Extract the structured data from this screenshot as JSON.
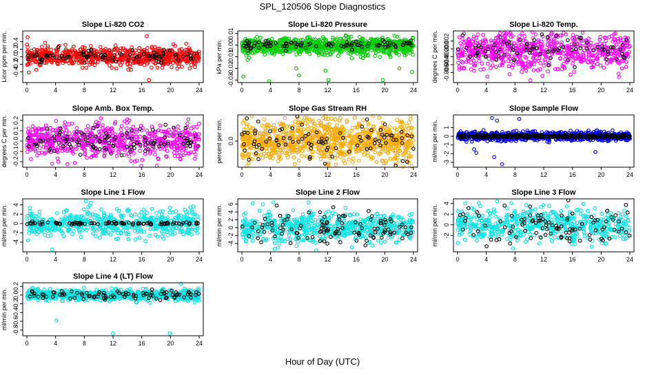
{
  "figure": {
    "title": "SPL_120506  Slope Diagnostics",
    "xlabel": "Hour of Day (UTC)"
  },
  "chart_data": [
    {
      "type": "scatter",
      "title": "Slope Li-820 CO2",
      "ylabel": "Licor ppm per min.",
      "xlim": [
        0,
        24
      ],
      "ylim": [
        -0.65,
        0.65
      ],
      "xticks": [
        0,
        4,
        8,
        12,
        16,
        20,
        24
      ],
      "yticks": [
        -0.4,
        -0.2,
        0.0,
        0.2,
        0.4
      ],
      "ytick_labels": [
        "-0.4",
        "-0.2",
        "0.0",
        "0.2",
        "0.4"
      ],
      "series": [
        {
          "name": "all",
          "color": "#ff0000",
          "n": 700,
          "spread": 0.12,
          "center": 0.0,
          "outliers": [
            [
              0.1,
              0.52
            ],
            [
              1.3,
              -0.35
            ],
            [
              17.0,
              -0.62
            ],
            [
              16.7,
              0.55
            ]
          ]
        },
        {
          "name": "highlight",
          "color": "#000000",
          "n": 90,
          "spread": 0.08,
          "center": 0.0,
          "outliers": []
        }
      ]
    },
    {
      "type": "scatter",
      "title": "Slope Li-820 Pressure",
      "ylabel": "kPa per min.",
      "xlim": [
        0,
        24
      ],
      "ylim": [
        -0.031,
        0.011
      ],
      "xticks": [
        0,
        4,
        8,
        12,
        16,
        20,
        24
      ],
      "yticks": [
        -0.03,
        -0.02,
        -0.01,
        0.0,
        0.01
      ],
      "ytick_labels": [
        "-0.03",
        "-0.02",
        "-0.01",
        "0.00",
        "0.01"
      ],
      "series": [
        {
          "name": "all",
          "color": "#00cc00",
          "n": 900,
          "spread": 0.0035,
          "center": -0.001,
          "outliers": [
            [
              0.2,
              -0.027
            ],
            [
              3.8,
              -0.031
            ],
            [
              7.6,
              -0.02
            ],
            [
              8.0,
              -0.026
            ],
            [
              11.7,
              -0.022
            ],
            [
              12.1,
              -0.03
            ],
            [
              22.0,
              -0.02
            ],
            [
              23.8,
              -0.023
            ],
            [
              19.7,
              -0.03
            ]
          ]
        },
        {
          "name": "highlight",
          "color": "#000000",
          "n": 90,
          "spread": 0.002,
          "center": 0.0,
          "outliers": []
        }
      ]
    },
    {
      "type": "scatter",
      "title": "Slope Li-820 Temp.",
      "ylabel": "degrees C per min.",
      "xlim": [
        0,
        24
      ],
      "ylim": [
        -0.0082,
        0.0042
      ],
      "xticks": [
        0,
        4,
        8,
        12,
        16,
        20,
        24
      ],
      "yticks": [
        -0.006,
        -0.004,
        -0.002,
        0.0,
        0.002
      ],
      "ytick_labels": [
        "-0.006",
        "-0.004",
        "-0.002",
        "0.000",
        "0.002"
      ],
      "series": [
        {
          "name": "all",
          "color": "#ff00ff",
          "n": 700,
          "spread": 0.0025,
          "center": -0.0005,
          "outliers": [
            [
              6.5,
              0.004
            ],
            [
              9.5,
              -0.0085
            ],
            [
              12.8,
              0.0033
            ]
          ]
        },
        {
          "name": "highlight",
          "color": "#000000",
          "n": 80,
          "spread": 0.002,
          "center": 0.0,
          "outliers": []
        }
      ]
    },
    {
      "type": "scatter",
      "title": "Slope Amb. Box Temp.",
      "ylabel": "degrees C per min.",
      "xlim": [
        0,
        24
      ],
      "ylim": [
        -0.24,
        0.24
      ],
      "xticks": [
        0,
        4,
        8,
        12,
        16,
        20,
        24
      ],
      "yticks": [
        -0.2,
        -0.1,
        0.0,
        0.1,
        0.2
      ],
      "ytick_labels": [
        "-0.2",
        "-0.1",
        "0.0",
        "0.1",
        "0.2"
      ],
      "series": [
        {
          "name": "all",
          "color": "#ff00ff",
          "n": 650,
          "spread": 0.08,
          "center": 0.0,
          "outliers": [
            [
              10.3,
              0.22
            ],
            [
              3.5,
              -0.22
            ],
            [
              18.1,
              -0.24
            ]
          ]
        },
        {
          "name": "highlight",
          "color": "#000000",
          "n": 110,
          "spread": 0.07,
          "center": 0.0,
          "outliers": []
        }
      ]
    },
    {
      "type": "scatter",
      "title": "Slope Gas Stream RH",
      "ylabel": "percent per min.",
      "xlim": [
        0,
        24
      ],
      "ylim": [
        -0.09,
        0.09
      ],
      "xticks": [
        0,
        4,
        8,
        12,
        16,
        20,
        24
      ],
      "yticks": [
        0.0
      ],
      "ytick_labels": [
        "0.0"
      ],
      "series": [
        {
          "name": "all",
          "color": "#ffaa00",
          "n": 950,
          "spread": 0.04,
          "center": 0.0,
          "outliers": [
            [
              11.9,
              -0.085
            ],
            [
              15.8,
              0.085
            ],
            [
              19.2,
              0.085
            ]
          ]
        },
        {
          "name": "highlight",
          "color": "#000000",
          "n": 90,
          "spread": 0.035,
          "center": 0.0,
          "outliers": []
        }
      ]
    },
    {
      "type": "scatter",
      "title": "Slope Sample Flow",
      "ylabel": "ml/min per min.",
      "xlim": [
        0,
        24
      ],
      "ylim": [
        -3.4,
        2.3
      ],
      "xticks": [
        0,
        4,
        8,
        12,
        16,
        20,
        24
      ],
      "yticks": [
        -3,
        -2,
        -1,
        0,
        1
      ],
      "ytick_labels": [
        "-3",
        "-2",
        "-1",
        "0",
        "1"
      ],
      "series": [
        {
          "name": "all",
          "color": "#0000dd",
          "n": 800,
          "spread": 0.25,
          "center": 0.0,
          "outliers": [
            [
              4.8,
              2.1
            ],
            [
              5.5,
              1.8
            ],
            [
              2.3,
              -1.5
            ],
            [
              2.6,
              -1.9
            ],
            [
              5.1,
              -2.4
            ],
            [
              6.2,
              -3.2
            ],
            [
              8.6,
              2.0
            ],
            [
              19.2,
              -1.8
            ]
          ]
        },
        {
          "name": "highlight",
          "color": "#000000",
          "n": 300,
          "spread": 0.07,
          "center": 0.0,
          "outliers": []
        }
      ]
    },
    {
      "type": "scatter",
      "title": "Slope Line 1 Flow",
      "ylabel": "ml/min per min.",
      "xlim": [
        0,
        24
      ],
      "ylim": [
        -5.8,
        5.0
      ],
      "xticks": [
        0,
        4,
        8,
        12,
        16,
        20,
        24
      ],
      "yticks": [
        -4,
        -2,
        0,
        2,
        4
      ],
      "ytick_labels": [
        "-4",
        "-2",
        "0",
        "2",
        "4"
      ],
      "series": [
        {
          "name": "all",
          "color": "#00e5e5",
          "n": 550,
          "spread": 1.4,
          "center": 0.0,
          "outliers": [
            [
              3.5,
              -5.6
            ],
            [
              8.2,
              4.8
            ],
            [
              8.9,
              4.4
            ]
          ]
        },
        {
          "name": "highlight",
          "color": "#000000",
          "n": 90,
          "spread": 0.15,
          "center": 0.0,
          "outliers": []
        }
      ]
    },
    {
      "type": "scatter",
      "title": "Slope Line 2 Flow",
      "ylabel": "ml/min per min.",
      "xlim": [
        0,
        24
      ],
      "ylim": [
        -5.8,
        7.0
      ],
      "xticks": [
        0,
        4,
        8,
        12,
        16,
        20,
        24
      ],
      "yticks": [
        -4,
        -2,
        0,
        2,
        4,
        6
      ],
      "ytick_labels": [
        "-4",
        "-2",
        "0",
        "2",
        "4",
        "6"
      ],
      "series": [
        {
          "name": "all",
          "color": "#00e5e5",
          "n": 600,
          "spread": 1.8,
          "center": 0.0,
          "outliers": [
            [
              1.5,
              6.2
            ],
            [
              9.3,
              6.4
            ],
            [
              4.6,
              -5.4
            ],
            [
              10.4,
              -5.8
            ]
          ]
        },
        {
          "name": "highlight",
          "color": "#000000",
          "n": 110,
          "spread": 2.2,
          "center": 0.0,
          "outliers": []
        }
      ]
    },
    {
      "type": "scatter",
      "title": "Slope Line 3 Flow",
      "ylabel": "ml/min per min.",
      "xlim": [
        0,
        24
      ],
      "ylim": [
        -4.8,
        4.6
      ],
      "xticks": [
        0,
        4,
        8,
        12,
        16,
        20,
        24
      ],
      "yticks": [
        -2,
        0,
        2,
        4
      ],
      "ytick_labels": [
        "-2",
        "0",
        "2",
        "4"
      ],
      "series": [
        {
          "name": "all",
          "color": "#00e5e5",
          "n": 550,
          "spread": 1.5,
          "center": 0.0,
          "outliers": [
            [
              5.5,
              4.4
            ],
            [
              7.5,
              4.0
            ]
          ]
        },
        {
          "name": "highlight",
          "color": "#000000",
          "n": 100,
          "spread": 1.6,
          "center": 0.0,
          "outliers": []
        }
      ]
    },
    {
      "type": "scatter",
      "title": "Slope Line 4 (LT) Flow",
      "ylabel": "ml/min per min.",
      "xlim": [
        0,
        24
      ],
      "ylim": [
        -0.9,
        0.25
      ],
      "xticks": [
        0,
        4,
        8,
        12,
        16,
        20,
        24
      ],
      "yticks": [
        -0.8,
        -0.6,
        -0.4,
        -0.2,
        0.0,
        0.2
      ],
      "ytick_labels": [
        "-0.8",
        "-0.6",
        "-0.4",
        "-0.2",
        "0.0",
        "0.2"
      ],
      "series": [
        {
          "name": "all",
          "color": "#00e5e5",
          "n": 700,
          "spread": 0.06,
          "center": 0.0,
          "outliers": [
            [
              4.1,
              -0.58
            ],
            [
              12.0,
              -0.88
            ],
            [
              19.9,
              -0.88
            ],
            [
              23.9,
              0.15
            ]
          ]
        },
        {
          "name": "highlight",
          "color": "#000000",
          "n": 90,
          "spread": 0.05,
          "center": 0.0,
          "outliers": []
        }
      ]
    }
  ]
}
